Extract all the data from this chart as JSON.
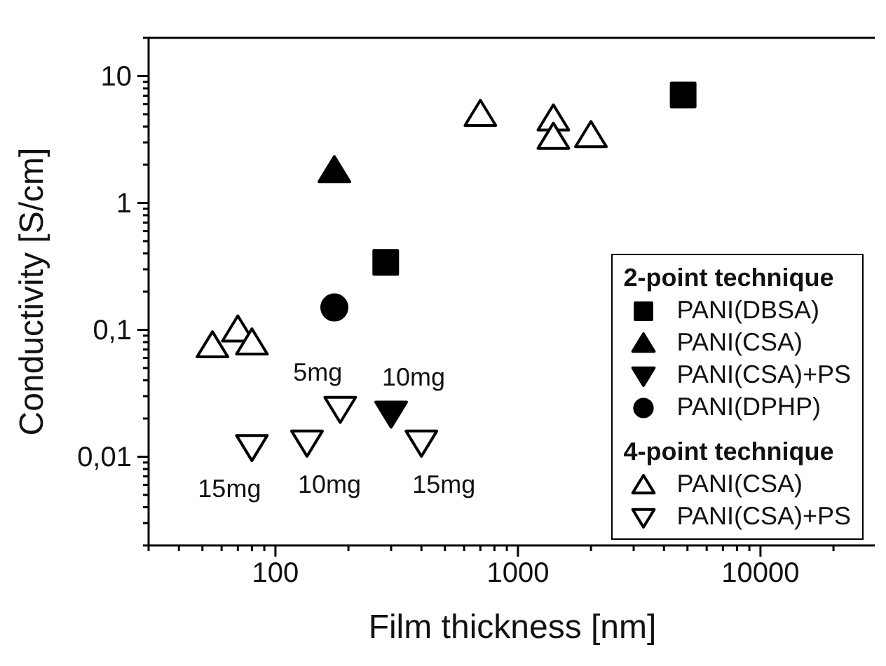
{
  "chart_data": {
    "type": "scatter",
    "xlabel": "Film thickness [nm]",
    "ylabel": "Conductivity [S/cm]",
    "log": "xy",
    "legend": "bottom right",
    "xlim": [
      30,
      30000
    ],
    "ylim": [
      0.002,
      20
    ],
    "xticks": [
      {
        "value": 30,
        "label": null
      },
      {
        "value": 40,
        "label": null
      },
      {
        "value": 50,
        "label": null
      },
      {
        "value": 60,
        "label": null
      },
      {
        "value": 70,
        "label": null
      },
      {
        "value": 80,
        "label": null
      },
      {
        "value": 90,
        "label": null
      },
      100,
      {
        "value": 200,
        "label": null
      },
      {
        "value": 300,
        "label": null
      },
      {
        "value": 400,
        "label": null
      },
      {
        "value": 500,
        "label": null
      },
      {
        "value": 600,
        "label": null
      },
      {
        "value": 700,
        "label": null
      },
      {
        "value": 800,
        "label": null
      },
      {
        "value": 900,
        "label": null
      },
      1000,
      {
        "value": 2000,
        "label": null
      },
      {
        "value": 3000,
        "label": null
      },
      {
        "value": 4000,
        "label": null
      },
      {
        "value": 5000,
        "label": null
      },
      {
        "value": 6000,
        "label": null
      },
      {
        "value": 7000,
        "label": null
      },
      {
        "value": 8000,
        "label": null
      },
      {
        "value": 9000,
        "label": null
      },
      10000,
      {
        "value": 20000,
        "label": null
      },
      {
        "value": 30000,
        "label": null
      }
    ],
    "yticks": [
      {
        "value": 0.002,
        "label": null
      },
      {
        "value": 0.003,
        "label": null
      },
      {
        "value": 0.004,
        "label": null
      },
      {
        "value": 0.005,
        "label": null
      },
      {
        "value": 0.006,
        "label": null
      },
      {
        "value": 0.007,
        "label": null
      },
      {
        "value": 0.008,
        "label": null
      },
      {
        "value": 0.009,
        "label": null
      },
      {
        "value": 0.01,
        "label": "0,01"
      },
      {
        "value": 0.02,
        "label": null
      },
      {
        "value": 0.03,
        "label": null
      },
      {
        "value": 0.04,
        "label": null
      },
      {
        "value": 0.05,
        "label": null
      },
      {
        "value": 0.06,
        "label": null
      },
      {
        "value": 0.07,
        "label": null
      },
      {
        "value": 0.08,
        "label": null
      },
      {
        "value": 0.09,
        "label": null
      },
      {
        "value": 0.1,
        "label": "0,1"
      },
      {
        "value": 0.2,
        "label": null
      },
      {
        "value": 0.3,
        "label": null
      },
      {
        "value": 0.4,
        "label": null
      },
      {
        "value": 0.5,
        "label": null
      },
      {
        "value": 0.6,
        "label": null
      },
      {
        "value": 0.7,
        "label": null
      },
      {
        "value": 0.8,
        "label": null
      },
      {
        "value": 0.9,
        "label": null
      },
      {
        "value": 1,
        "label": "1"
      },
      {
        "value": 2,
        "label": null
      },
      {
        "value": 3,
        "label": null
      },
      {
        "value": 4,
        "label": null
      },
      {
        "value": 5,
        "label": null
      },
      {
        "value": 6,
        "label": null
      },
      {
        "value": 7,
        "label": null
      },
      {
        "value": 8,
        "label": null
      },
      {
        "value": 9,
        "label": null
      },
      {
        "value": 10,
        "label": "10"
      },
      {
        "value": 20,
        "label": null
      }
    ],
    "series": [
      {
        "name": "PANI(DBSA)",
        "color": "#000000",
        "marker": "square",
        "x": [
          285,
          4800
        ],
        "values": [
          0.34,
          7.1
        ]
      },
      {
        "name": "PANI(CSA)",
        "color": "#000000",
        "marker": "triangle",
        "x": [
          175
        ],
        "values": [
          1.8
        ]
      },
      {
        "name": "PANI(CSA)+PS",
        "color": "#000000",
        "marker": "triangle-down",
        "x": [
          300
        ],
        "values": [
          0.022
        ]
      },
      {
        "name": "PANI(DPHP)",
        "color": "#000000",
        "marker": "circle",
        "x": [
          175
        ],
        "values": [
          0.15
        ]
      },
      {
        "name": "PANI(CSA)",
        "color": "#ffffff",
        "marker": "triangle",
        "x": [
          55,
          70,
          80,
          700,
          1400,
          1400,
          2000
        ],
        "values": [
          0.075,
          0.1,
          0.079,
          5.0,
          4.6,
          3.3,
          3.4
        ]
      },
      {
        "name": "PANI(CSA)+PS",
        "color": "#ffffff",
        "marker": "triangle-down",
        "x": [
          80,
          135,
          185,
          400
        ],
        "values": [
          0.012,
          0.013,
          0.024,
          0.013
        ]
      }
    ],
    "annotations": [
      "2-point technique",
      "4-point technique",
      {
        "text": "5mg",
        "x": 185,
        "y": 0.024
      },
      {
        "text": "10mg",
        "x": 300,
        "y": 0.022
      },
      {
        "text": "15mg",
        "x": 80,
        "y": 0.012
      },
      {
        "text": "10mg",
        "x": 135,
        "y": 0.013
      },
      {
        "text": "15mg",
        "x": 400,
        "y": 0.013
      }
    ]
  }
}
